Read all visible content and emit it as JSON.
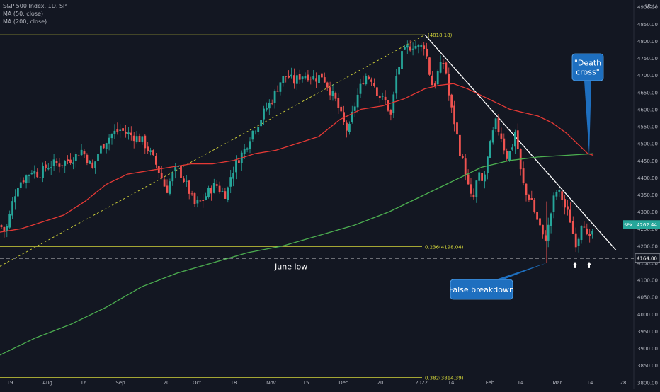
{
  "header": {
    "symbol_line": "S&P 500 Index, 1D, SP",
    "ma_lines": [
      "MA (50, close)",
      "MA (200, close)"
    ],
    "currency": "USD"
  },
  "chart_data": {
    "type": "candlestick",
    "title": "S&P 500 Index, 1D, SP",
    "ylim": [
      3780,
      4920
    ],
    "y_ticks": [
      3800,
      3850,
      3900,
      3950,
      4000,
      4050,
      4100,
      4150,
      4200,
      4250,
      4300,
      4350,
      4400,
      4450,
      4500,
      4550,
      4600,
      4650,
      4700,
      4750,
      4800,
      4850,
      4900
    ],
    "x_tick_labels": [
      "19",
      "Aug",
      "16",
      "Sep",
      "20",
      "Oct",
      "18",
      "Nov",
      "15",
      "Dec",
      "20",
      "2022",
      "14",
      "Feb",
      "14",
      "Mar",
      "14",
      "28"
    ],
    "close_path": [
      [
        0,
        4260
      ],
      [
        8,
        4240
      ],
      [
        14,
        4290
      ],
      [
        18,
        4330
      ],
      [
        25,
        4380
      ],
      [
        35,
        4400
      ],
      [
        45,
        4420
      ],
      [
        55,
        4410
      ],
      [
        65,
        4430
      ],
      [
        75,
        4440
      ],
      [
        85,
        4440
      ],
      [
        95,
        4450
      ],
      [
        105,
        4460
      ],
      [
        115,
        4480
      ],
      [
        125,
        4450
      ],
      [
        130,
        4420
      ],
      [
        140,
        4480
      ],
      [
        150,
        4510
      ],
      [
        160,
        4530
      ],
      [
        170,
        4540
      ],
      [
        178,
        4530
      ],
      [
        190,
        4520
      ],
      [
        200,
        4510
      ],
      [
        210,
        4480
      ],
      [
        220,
        4440
      ],
      [
        228,
        4400
      ],
      [
        235,
        4360
      ],
      [
        242,
        4400
      ],
      [
        250,
        4430
      ],
      [
        258,
        4400
      ],
      [
        265,
        4370
      ],
      [
        275,
        4320
      ],
      [
        285,
        4330
      ],
      [
        295,
        4360
      ],
      [
        305,
        4380
      ],
      [
        312,
        4360
      ],
      [
        320,
        4350
      ],
      [
        325,
        4400
      ],
      [
        335,
        4450
      ],
      [
        345,
        4480
      ],
      [
        355,
        4530
      ],
      [
        365,
        4560
      ],
      [
        375,
        4600
      ],
      [
        385,
        4630
      ],
      [
        395,
        4680
      ],
      [
        405,
        4700
      ],
      [
        415,
        4680
      ],
      [
        425,
        4700
      ],
      [
        435,
        4700
      ],
      [
        445,
        4690
      ],
      [
        455,
        4700
      ],
      [
        465,
        4660
      ],
      [
        475,
        4620
      ],
      [
        485,
        4560
      ],
      [
        492,
        4530
      ],
      [
        498,
        4590
      ],
      [
        505,
        4640
      ],
      [
        515,
        4700
      ],
      [
        525,
        4690
      ],
      [
        535,
        4640
      ],
      [
        545,
        4620
      ],
      [
        552,
        4580
      ],
      [
        560,
        4700
      ],
      [
        568,
        4760
      ],
      [
        576,
        4780
      ],
      [
        584,
        4790
      ],
      [
        592,
        4780
      ],
      [
        600,
        4790
      ],
      [
        605,
        4720
      ],
      [
        612,
        4660
      ],
      [
        620,
        4720
      ],
      [
        628,
        4740
      ],
      [
        635,
        4620
      ],
      [
        642,
        4560
      ],
      [
        650,
        4470
      ],
      [
        657,
        4420
      ],
      [
        663,
        4350
      ],
      [
        668,
        4330
      ],
      [
        675,
        4410
      ],
      [
        682,
        4380
      ],
      [
        688,
        4450
      ],
      [
        695,
        4520
      ],
      [
        700,
        4560
      ],
      [
        708,
        4520
      ],
      [
        715,
        4460
      ],
      [
        722,
        4480
      ],
      [
        728,
        4540
      ],
      [
        735,
        4420
      ],
      [
        742,
        4350
      ],
      [
        750,
        4340
      ],
      [
        756,
        4290
      ],
      [
        762,
        4260
      ],
      [
        768,
        4210
      ],
      [
        775,
        4260
      ],
      [
        780,
        4320
      ],
      [
        785,
        4360
      ],
      [
        792,
        4350
      ],
      [
        798,
        4310
      ],
      [
        805,
        4280
      ],
      [
        810,
        4230
      ],
      [
        815,
        4200
      ],
      [
        820,
        4270
      ],
      [
        825,
        4270
      ],
      [
        830,
        4210
      ],
      [
        835,
        4220
      ],
      [
        838,
        4262
      ]
    ],
    "ma50_path": [
      [
        0,
        4240
      ],
      [
        30,
        4250
      ],
      [
        60,
        4270
      ],
      [
        90,
        4290
      ],
      [
        120,
        4330
      ],
      [
        150,
        4380
      ],
      [
        180,
        4410
      ],
      [
        210,
        4420
      ],
      [
        240,
        4430
      ],
      [
        270,
        4440
      ],
      [
        300,
        4440
      ],
      [
        330,
        4450
      ],
      [
        360,
        4470
      ],
      [
        390,
        4480
      ],
      [
        420,
        4500
      ],
      [
        450,
        4520
      ],
      [
        480,
        4570
      ],
      [
        510,
        4600
      ],
      [
        540,
        4610
      ],
      [
        570,
        4630
      ],
      [
        600,
        4660
      ],
      [
        620,
        4670
      ],
      [
        640,
        4675
      ],
      [
        660,
        4660
      ],
      [
        680,
        4640
      ],
      [
        700,
        4620
      ],
      [
        720,
        4600
      ],
      [
        740,
        4590
      ],
      [
        760,
        4580
      ],
      [
        780,
        4560
      ],
      [
        800,
        4530
      ],
      [
        815,
        4500
      ],
      [
        830,
        4470
      ],
      [
        838,
        4465
      ]
    ],
    "ma200_path": [
      [
        0,
        3880
      ],
      [
        50,
        3930
      ],
      [
        100,
        3970
      ],
      [
        150,
        4020
      ],
      [
        200,
        4080
      ],
      [
        250,
        4120
      ],
      [
        300,
        4150
      ],
      [
        350,
        4180
      ],
      [
        400,
        4200
      ],
      [
        450,
        4230
      ],
      [
        500,
        4260
      ],
      [
        550,
        4300
      ],
      [
        600,
        4350
      ],
      [
        640,
        4390
      ],
      [
        680,
        4430
      ],
      [
        720,
        4450
      ],
      [
        760,
        4460
      ],
      [
        800,
        4465
      ],
      [
        838,
        4470
      ]
    ],
    "fib_levels": [
      {
        "label": "(4818.18)",
        "value": 4818
      },
      {
        "label": "0.236(4198.04)",
        "value": 4198
      },
      {
        "label": "0.382(3814.39)",
        "value": 3814
      }
    ],
    "june_low": {
      "value": 4164,
      "label": "June low",
      "price_tag": "4164.00"
    },
    "last_price": {
      "symbol": "SPX",
      "value": 4262.44,
      "label": "4262.44"
    },
    "rising_trendline": [
      [
        0,
        4140
      ],
      [
        600,
        4818
      ]
    ],
    "falling_trendline": [
      [
        600,
        4818
      ],
      [
        870,
        4187
      ]
    ],
    "annotations": [
      {
        "label_lines": [
          "\"Death",
          "cross\""
        ],
        "point": [
          832,
          4465
        ]
      },
      {
        "label_lines": [
          "False breakdown"
        ],
        "point": [
          772,
          4150
        ]
      }
    ],
    "series_colors": {
      "up": "#26a69a",
      "down": "#ef5350",
      "ma50": "#e53935",
      "ma200": "#4caf50",
      "fib": "#d4d63a",
      "trendline": "#ffffff",
      "callout": "#1e6fbf"
    }
  }
}
